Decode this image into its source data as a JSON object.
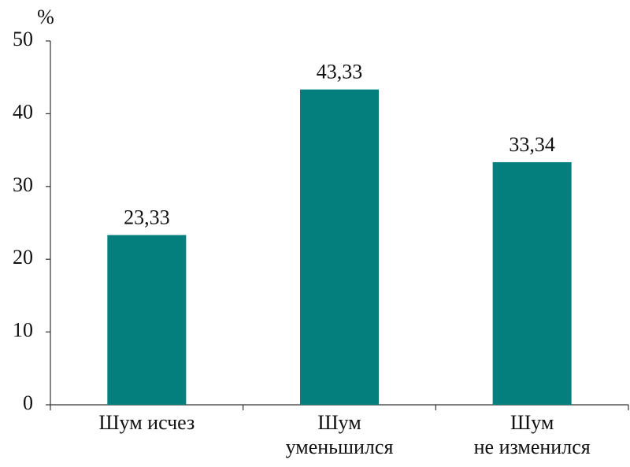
{
  "chart_data": {
    "type": "bar",
    "y_label": "%",
    "categories": [
      [
        "Шум исчез"
      ],
      [
        "Шум",
        "уменьшился"
      ],
      [
        "Шум",
        "не изменился"
      ]
    ],
    "values": [
      23.33,
      43.33,
      33.34
    ],
    "value_labels": [
      "23,33",
      "43,33",
      "33,34"
    ],
    "color": "#047f7e",
    "ylim": [
      0,
      50
    ],
    "yticks": [
      0,
      10,
      20,
      30,
      40,
      50
    ],
    "grid": false
  }
}
